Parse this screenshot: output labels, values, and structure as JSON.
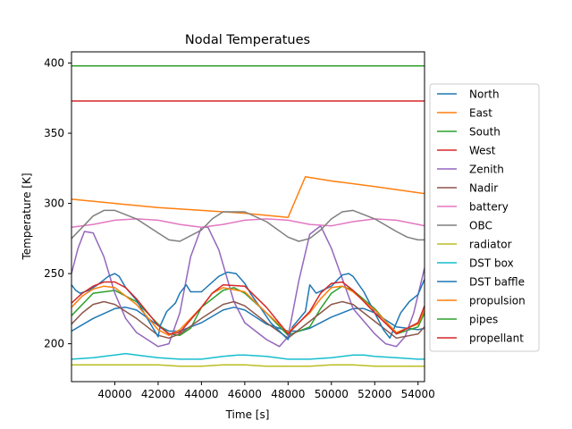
{
  "chart_data": {
    "type": "line",
    "title": "Nodal Temperatues",
    "xlabel": "Time [s]",
    "ylabel": "Temperature [K]",
    "xlim": [
      38000,
      54300
    ],
    "ylim": [
      173,
      408
    ],
    "xticks": [
      40000,
      42000,
      44000,
      46000,
      48000,
      50000,
      52000,
      54000
    ],
    "yticks": [
      200,
      250,
      300,
      350,
      400
    ],
    "grid": false,
    "legend_position": "right",
    "series": [
      {
        "name": "North",
        "color": "#1f77b4",
        "x": [
          38000,
          39000,
          40000,
          40500,
          41000,
          42000,
          42500,
          43000,
          44000,
          45000,
          45500,
          46000,
          47000,
          48000,
          48500,
          49000,
          50000,
          51000,
          51500,
          52000,
          53000,
          54000,
          54300
        ],
        "y": [
          209,
          218,
          225,
          226,
          224,
          213,
          209,
          209,
          215,
          224,
          226,
          224,
          214,
          209,
          209,
          211,
          219,
          225,
          225,
          222,
          212,
          210,
          211
        ]
      },
      {
        "name": "East",
        "color": "#ff7f0e",
        "x": [
          38000,
          40000,
          42000,
          44000,
          46000,
          48000,
          48800,
          50000,
          52000,
          54300
        ],
        "y": [
          303,
          300,
          297,
          295,
          293,
          290,
          319,
          316,
          312,
          307
        ]
      },
      {
        "name": "South",
        "color": "#2ca02c",
        "x": [
          38000,
          39000,
          40000,
          41000,
          42000,
          42500,
          43000,
          43500,
          44000,
          45000,
          45500,
          46000,
          47000,
          48000,
          49000,
          49500,
          50000,
          50500,
          51000,
          52000,
          53000,
          54000,
          54300
        ],
        "y": [
          220,
          236,
          238,
          230,
          214,
          207,
          206,
          211,
          226,
          238,
          240,
          236,
          222,
          206,
          212,
          225,
          236,
          241,
          238,
          225,
          207,
          212,
          222
        ]
      },
      {
        "name": "West",
        "color": "#d62728",
        "x": [
          38000,
          39000,
          40000,
          41000,
          42000,
          42500,
          43000,
          44000,
          45000,
          45500,
          46000,
          47000,
          48000,
          48500,
          49000,
          50000,
          51000,
          52000,
          53000,
          54000,
          54300
        ],
        "y": [
          373,
          373,
          373,
          373,
          373,
          373,
          373,
          373,
          373,
          373,
          373,
          373,
          373,
          373,
          373,
          373,
          373,
          373,
          373,
          373,
          373
        ]
      },
      {
        "name": "Zenith",
        "color": "#9467bd",
        "x": [
          38000,
          38300,
          38600,
          39000,
          39500,
          40000,
          40500,
          41000,
          42000,
          42500,
          43000,
          43500,
          44000,
          44300,
          44800,
          45500,
          46000,
          47000,
          47600,
          48000,
          48500,
          49000,
          49500,
          50000,
          51000,
          52000,
          52500,
          53000,
          53400,
          53800,
          54300
        ],
        "y": [
          250,
          268,
          280,
          279,
          262,
          236,
          218,
          208,
          198,
          200,
          222,
          262,
          283,
          283,
          267,
          230,
          215,
          203,
          198,
          205,
          245,
          278,
          284,
          268,
          225,
          207,
          200,
          198,
          205,
          222,
          254
        ]
      },
      {
        "name": "Nadir",
        "color": "#8c564b",
        "x": [
          38000,
          38500,
          39000,
          39500,
          40000,
          41000,
          42000,
          42500,
          43000,
          44000,
          45000,
          45500,
          46000,
          47000,
          48000,
          49000,
          50000,
          50500,
          51000,
          52000,
          53000,
          54000,
          54300
        ],
        "y": [
          214,
          222,
          228,
          230,
          228,
          218,
          206,
          204,
          207,
          218,
          228,
          230,
          227,
          215,
          204,
          216,
          228,
          230,
          228,
          216,
          204,
          207,
          212
        ]
      },
      {
        "name": "battery",
        "color": "#e377c2",
        "x": [
          38000,
          39000,
          40000,
          41000,
          42000,
          43000,
          44000,
          45000,
          46000,
          47000,
          48000,
          49000,
          50000,
          51000,
          52000,
          53000,
          54000,
          54300
        ],
        "y": [
          283,
          285,
          288,
          289,
          288,
          285,
          283,
          285,
          288,
          289,
          288,
          285,
          284,
          287,
          289,
          288,
          285,
          284
        ]
      },
      {
        "name": "OBC",
        "color": "#7f7f7f",
        "x": [
          38000,
          38500,
          39000,
          39500,
          40000,
          41000,
          42000,
          42500,
          43000,
          44000,
          44500,
          45000,
          46000,
          47000,
          48000,
          48500,
          49000,
          49500,
          50000,
          50500,
          51000,
          52000,
          53000,
          53500,
          54000,
          54300
        ],
        "y": [
          275,
          283,
          291,
          295,
          295,
          289,
          279,
          274,
          273,
          281,
          289,
          294,
          294,
          287,
          276,
          273,
          275,
          281,
          289,
          294,
          295,
          289,
          280,
          276,
          274,
          274
        ]
      },
      {
        "name": "radiator",
        "color": "#bcbd22",
        "x": [
          38000,
          39000,
          40000,
          41000,
          42000,
          43000,
          44000,
          45000,
          46000,
          47000,
          48000,
          49000,
          50000,
          51000,
          52000,
          53000,
          54000,
          54300
        ],
        "y": [
          185,
          185,
          185,
          185,
          185,
          184,
          184,
          185,
          185,
          184,
          184,
          184,
          185,
          185,
          184,
          184,
          184,
          184
        ]
      },
      {
        "name": "DST box",
        "color": "#17becf",
        "x": [
          38000,
          39000,
          40000,
          40500,
          41000,
          42000,
          43000,
          44000,
          45000,
          45700,
          46000,
          47000,
          48000,
          49000,
          50000,
          51000,
          51500,
          52000,
          53000,
          54000,
          54300
        ],
        "y": [
          189,
          190,
          192,
          193,
          192,
          190,
          189,
          189,
          191,
          192,
          192,
          191,
          189,
          189,
          190,
          192,
          192,
          191,
          190,
          189,
          189
        ]
      },
      {
        "name": "DST baffle",
        "color": "#1f77b4",
        "x": [
          38000,
          38200,
          38400,
          38800,
          39200,
          39700,
          40000,
          40200,
          40500,
          41000,
          42000,
          42100,
          42400,
          42800,
          43000,
          43300,
          43500,
          44000,
          44800,
          45200,
          45600,
          46000,
          46300,
          46800,
          47200,
          48000,
          48200,
          48800,
          49000,
          49300,
          50000,
          50500,
          50800,
          51000,
          51500,
          52000,
          52400,
          52700,
          53200,
          53600,
          54000,
          54300
        ],
        "y": [
          242,
          238,
          236,
          238,
          242,
          248,
          250,
          248,
          240,
          231,
          205,
          213,
          223,
          229,
          236,
          242,
          237,
          237,
          248,
          251,
          250,
          243,
          235,
          224,
          215,
          203,
          212,
          223,
          242,
          236,
          241,
          249,
          250,
          248,
          237,
          222,
          210,
          204,
          222,
          230,
          235,
          246
        ]
      },
      {
        "name": "propulsion",
        "color": "#ff7f0e",
        "x": [
          38000,
          38500,
          39000,
          39500,
          40000,
          41000,
          42000,
          42500,
          43000,
          44000,
          44500,
          45000,
          46000,
          47000,
          48000,
          49000,
          49500,
          50000,
          50500,
          51000,
          52000,
          53000,
          54000,
          54300
        ],
        "y": [
          226,
          234,
          239,
          241,
          240,
          228,
          210,
          206,
          210,
          226,
          236,
          240,
          237,
          222,
          208,
          222,
          232,
          240,
          241,
          237,
          224,
          208,
          214,
          224
        ]
      },
      {
        "name": "pipes",
        "color": "#2ca02c",
        "x": [
          38000,
          39000,
          40000,
          41000,
          42000,
          43000,
          44000,
          45000,
          46000,
          47000,
          48000,
          49000,
          50000,
          51000,
          52000,
          53000,
          54000,
          54300
        ],
        "y": [
          398,
          398,
          398,
          398,
          398,
          398,
          398,
          398,
          398,
          398,
          398,
          398,
          398,
          398,
          398,
          398,
          398,
          398
        ]
      },
      {
        "name": "propellant",
        "color": "#d62728",
        "x": [
          38000,
          38500,
          39000,
          39500,
          40000,
          40500,
          41000,
          42000,
          42500,
          43000,
          44000,
          44500,
          45000,
          46000,
          47000,
          48000,
          49000,
          49500,
          50000,
          50500,
          51000,
          52000,
          53000,
          54000,
          54300
        ],
        "y": [
          229,
          236,
          241,
          244,
          244,
          240,
          232,
          213,
          207,
          208,
          226,
          236,
          242,
          241,
          226,
          207,
          223,
          236,
          243,
          244,
          238,
          222,
          207,
          215,
          227
        ]
      }
    ]
  }
}
